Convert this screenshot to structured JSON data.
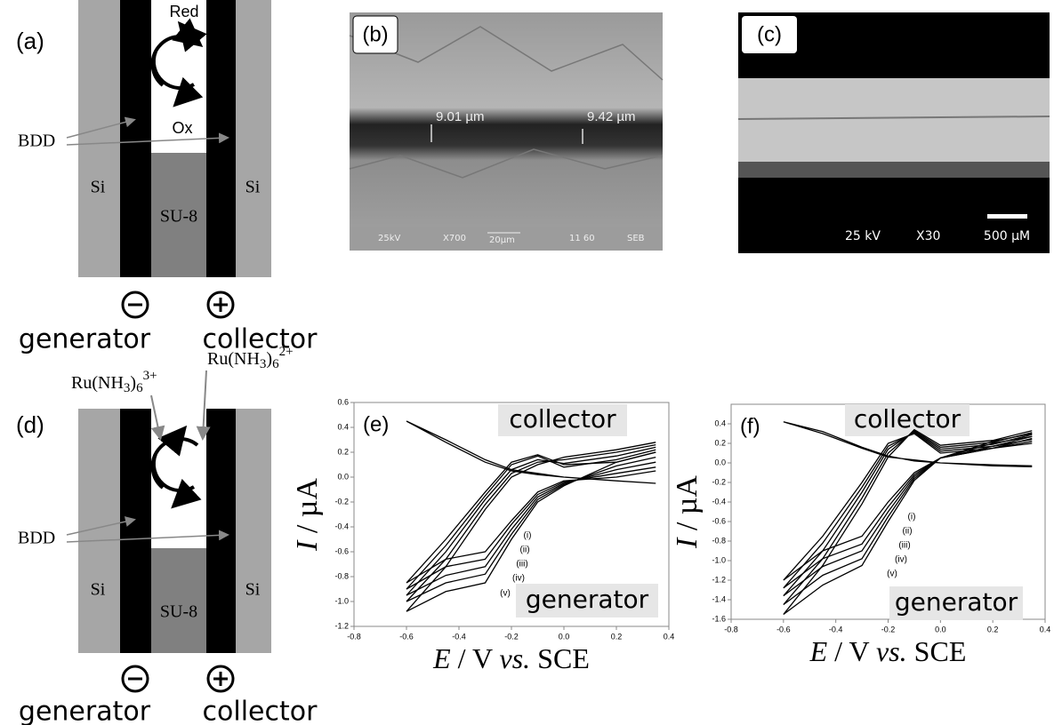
{
  "panels": {
    "a": {
      "label": "(a)",
      "red": "Red",
      "ox": "Ox",
      "bdd": "BDD",
      "si_left": "Si",
      "su8": "SU-8",
      "si_right": "Si",
      "generator": "generator",
      "collector": "collector"
    },
    "b": {
      "label": "(b)",
      "measure_left": "9.01 µm",
      "measure_right": "9.42 µm",
      "footer": [
        "25kV",
        "X700",
        "20µm",
        "11 60",
        "SEB"
      ]
    },
    "c": {
      "label": "(c)",
      "voltage": "25 kV",
      "magnification": "X30",
      "scale": "500 µM"
    },
    "d": {
      "label": "(d)",
      "species_left": {
        "base": "Ru(NH",
        "sub1": "3",
        "close": ")",
        "sub2": "6",
        "sup": "3+"
      },
      "species_right": {
        "base": "Ru(NH",
        "sub1": "3",
        "close": ")",
        "sub2": "6",
        "sup": "2+"
      },
      "bdd": "BDD",
      "si_left": "Si",
      "su8": "SU-8",
      "si_right": "Si",
      "generator": "generator",
      "collector": "collector"
    }
  },
  "chart_data": [
    {
      "type": "line",
      "label": "(e)",
      "annotation": "generator",
      "xlabel": [
        "E",
        " / V ",
        "vs.",
        " SCE"
      ],
      "ylabel": [
        "I",
        " / µA"
      ],
      "x": [
        0.35,
        0.2,
        0,
        -0.1,
        -0.2,
        -0.3,
        -0.45,
        -0.6,
        -0.45,
        -0.3,
        -0.2,
        -0.1,
        0,
        0.2,
        0.35
      ],
      "xlim": [
        -0.8,
        0.4
      ],
      "xticks": [
        -0.8,
        -0.6,
        -0.4,
        -0.2,
        {
          "value": 0,
          "label": "0.0"
        },
        0.2,
        0.4
      ],
      "ylim": [
        -1.2,
        0.6
      ],
      "yticks": [
        -1.2,
        {
          "value": -1,
          "label": "-1.0"
        },
        -0.8,
        -0.6,
        -0.4,
        -0.2,
        {
          "value": 0,
          "label": "0.0"
        },
        0.2,
        0.4,
        0.6
      ],
      "series": [
        {
          "name": "collector",
          "color": "#000000",
          "values": [
            -0.05,
            -0.03,
            0,
            0.02,
            0.05,
            0.12,
            0.28,
            0.45,
            0.3,
            0.14,
            0.06,
            0.03,
            0,
            -0.03,
            -0.05
          ]
        },
        {
          "name": "(i)",
          "color": "#000000",
          "values": [
            0.05,
            0,
            -0.03,
            -0.12,
            -0.35,
            -0.6,
            -0.66,
            -0.85,
            -0.5,
            -0.12,
            0.12,
            0.18,
            0.1,
            0.12,
            0.2
          ]
        },
        {
          "name": "(ii)",
          "color": "#000000",
          "values": [
            0.08,
            0.03,
            -0.04,
            -0.14,
            -0.38,
            -0.66,
            -0.72,
            -0.9,
            -0.55,
            -0.15,
            0.1,
            0.17,
            0.08,
            0.14,
            0.22
          ]
        },
        {
          "name": "(iii)",
          "color": "#000000",
          "values": [
            0.12,
            0.06,
            -0.05,
            -0.16,
            -0.42,
            -0.72,
            -0.79,
            -0.95,
            -0.6,
            -0.18,
            0.06,
            0.14,
            0.11,
            0.17,
            0.24
          ]
        },
        {
          "name": "(iv)",
          "color": "#000000",
          "values": [
            0.16,
            0.09,
            -0.06,
            -0.18,
            -0.46,
            -0.78,
            -0.85,
            -1,
            -0.66,
            -0.22,
            0.03,
            0.12,
            0.14,
            0.2,
            0.26
          ]
        },
        {
          "name": "(v)",
          "color": "#000000",
          "values": [
            0.2,
            0.12,
            -0.07,
            -0.2,
            -0.5,
            -0.85,
            -0.92,
            -1.08,
            -0.72,
            -0.26,
            0,
            0.1,
            0.16,
            0.22,
            0.28
          ]
        }
      ]
    },
    {
      "type": "line",
      "label": "(f)",
      "annotation": "generator",
      "xlabel": [
        "E",
        " / V ",
        "vs.",
        " SCE"
      ],
      "ylabel": [
        "I",
        " / µA"
      ],
      "x": [
        0.35,
        0.2,
        0,
        -0.1,
        -0.2,
        -0.3,
        -0.45,
        -0.6,
        -0.45,
        -0.3,
        -0.2,
        -0.1,
        0,
        0.2,
        0.35
      ],
      "xlim": [
        -0.8,
        0.4
      ],
      "xticks": [
        -0.8,
        -0.6,
        -0.4,
        -0.2,
        {
          "value": 0,
          "label": "0.0"
        },
        0.2,
        0.4
      ],
      "ylim": [
        -1.6,
        0.6
      ],
      "yticks": [
        -1.6,
        -1.4,
        -1.2,
        {
          "value": -1,
          "label": "-1.0"
        },
        -0.8,
        -0.6,
        -0.4,
        -0.2,
        {
          "value": 0,
          "label": "0.0"
        },
        0.2,
        0.4
      ],
      "series": [
        {
          "name": "collector",
          "color": "#000000",
          "values": [
            -0.03,
            -0.02,
            0,
            0.03,
            0.06,
            0.15,
            0.3,
            0.42,
            0.32,
            0.16,
            0.07,
            0.02,
            0,
            -0.03,
            -0.04
          ]
        },
        {
          "name": "(i)",
          "color": "#000000",
          "values": [
            0.2,
            0.15,
            0.05,
            -0.1,
            -0.4,
            -0.75,
            -0.9,
            -1.2,
            -0.75,
            -0.2,
            0.2,
            0.3,
            0.1,
            0.15,
            0.25
          ]
        },
        {
          "name": "(ii)",
          "color": "#000000",
          "values": [
            0.22,
            0.15,
            0.05,
            -0.12,
            -0.45,
            -0.83,
            -0.98,
            -1.28,
            -0.82,
            -0.25,
            0.17,
            0.31,
            0.12,
            0.17,
            0.27
          ]
        },
        {
          "name": "(iii)",
          "color": "#000000",
          "values": [
            0.24,
            0.17,
            0.05,
            -0.14,
            -0.5,
            -0.9,
            -1.06,
            -1.36,
            -0.9,
            -0.3,
            0.14,
            0.32,
            0.14,
            0.19,
            0.29
          ]
        },
        {
          "name": "(iv)",
          "color": "#000000",
          "values": [
            0.27,
            0.2,
            0.05,
            -0.16,
            -0.55,
            -0.98,
            -1.15,
            -1.45,
            -0.98,
            -0.36,
            0.1,
            0.33,
            0.16,
            0.21,
            0.31
          ]
        },
        {
          "name": "(v)",
          "color": "#000000",
          "values": [
            0.3,
            0.22,
            0.05,
            -0.18,
            -0.6,
            -1.05,
            -1.25,
            -1.55,
            -1.05,
            -0.42,
            0.06,
            0.34,
            0.18,
            0.23,
            0.33
          ]
        }
      ]
    }
  ]
}
